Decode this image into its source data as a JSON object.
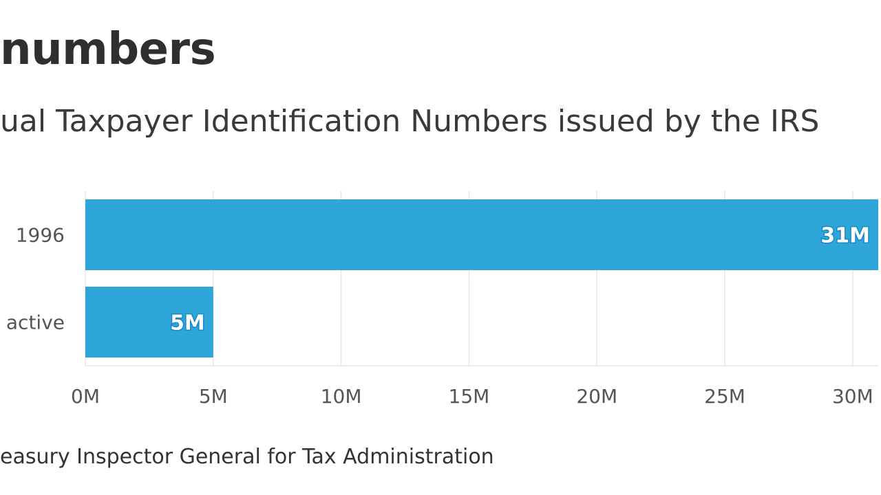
{
  "header": {
    "title": "numbers",
    "subtitle": "ual Taxpayer Identification Numbers issued by the IRS",
    "source": "easury Inspector General for Tax Administration"
  },
  "colors": {
    "bar": "#2ea6d9",
    "grid": "#e6e6e6",
    "label_stroke": "#1a86c4"
  },
  "chart_data": {
    "type": "bar",
    "orientation": "horizontal",
    "categories": [
      "1996",
      "active"
    ],
    "values": [
      31000000,
      5000000
    ],
    "data_labels": [
      "31M",
      "5M"
    ],
    "x_ticks": [
      0,
      5000000,
      10000000,
      15000000,
      20000000,
      25000000,
      30000000
    ],
    "x_tick_labels": [
      "0M",
      "5M",
      "10M",
      "15M",
      "20M",
      "25M",
      "30M"
    ],
    "xlim": [
      0,
      31000000
    ],
    "grid": true,
    "legend": "none"
  }
}
